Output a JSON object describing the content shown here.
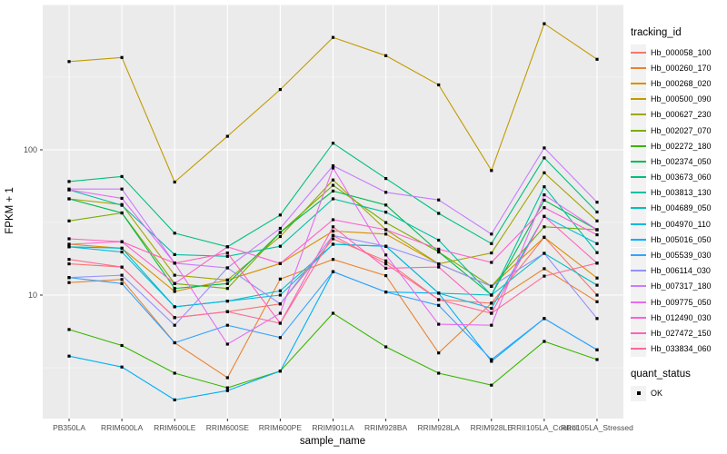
{
  "chart_data": {
    "type": "line",
    "xlabel": "sample_name",
    "ylabel": "FPKM + 1",
    "y_scale": "log10",
    "y_ticks": [
      10,
      100
    ],
    "y_domain_log10": [
      0.15,
      3.0
    ],
    "grid": {
      "major_log10": [
        1,
        2,
        3
      ],
      "minor_log10": [
        0.5,
        1.5,
        2.5
      ],
      "grid_on": true
    },
    "legend_position": "right",
    "x_categories": [
      "PB350LA",
      "RRIM600LA",
      "RRIM600LE",
      "RRIM600SE",
      "RRIM600PE",
      "RRIM901LA",
      "RRIM928BA",
      "RRIM928LA",
      "RRIM928LE",
      "RRII105LA_Control",
      "RRII105LA_Stressed"
    ],
    "color_legend_title": "tracking_id",
    "shape_legend_title": "quant_status",
    "shape_legend_items": [
      {
        "label": "OK",
        "shape": "square",
        "color": "#000000"
      }
    ],
    "series": [
      {
        "name": "Hb_000058_100",
        "color": "#F8766D",
        "values": [
          16.4,
          15.6,
          7.0,
          7.7,
          8.7,
          24.4,
          17.2,
          9.3,
          8.8,
          25.0,
          10.0
        ]
      },
      {
        "name": "Hb_000260_170",
        "color": "#EA8331",
        "values": [
          12.2,
          12.8,
          4.7,
          2.7,
          12.9,
          17.6,
          13.6,
          4.0,
          8.8,
          15.2,
          9.0
        ]
      },
      {
        "name": "Hb_000268_020",
        "color": "#D89000",
        "values": [
          22.4,
          21.0,
          10.6,
          12.7,
          16.5,
          27.6,
          26.3,
          16.4,
          11.5,
          25.0,
          13.1
        ]
      },
      {
        "name": "Hb_000500_090",
        "color": "#C09B00",
        "values": [
          405,
          432,
          60,
          124,
          260,
          594,
          445,
          280,
          72,
          738,
          420
        ]
      },
      {
        "name": "Hb_000627_230",
        "color": "#A3A500",
        "values": [
          46.0,
          42.0,
          13.7,
          12.7,
          25.3,
          62.0,
          28.2,
          16.4,
          19.5,
          69.5,
          32.4
        ]
      },
      {
        "name": "Hb_002027_070",
        "color": "#7CAE00",
        "values": [
          32.4,
          36.8,
          12.0,
          11.1,
          27.0,
          57.0,
          31.6,
          19.8,
          11.5,
          29.5,
          28.2
        ]
      },
      {
        "name": "Hb_002272_180",
        "color": "#39B600",
        "values": [
          5.8,
          4.5,
          2.9,
          2.3,
          3.0,
          7.5,
          4.4,
          2.9,
          2.4,
          4.8,
          3.6
        ]
      },
      {
        "name": "Hb_002374_050",
        "color": "#00BB4E",
        "values": [
          46.0,
          36.8,
          11.1,
          12.0,
          27.0,
          52.0,
          41.7,
          19.8,
          10.0,
          45.0,
          28.2
        ]
      },
      {
        "name": "Hb_003673_060",
        "color": "#00BF7D",
        "values": [
          60.5,
          65.5,
          26.7,
          21.5,
          35.6,
          111,
          63.5,
          36.5,
          22.6,
          88.0,
          37.3
        ]
      },
      {
        "name": "Hb_003813_130",
        "color": "#00C1A3",
        "values": [
          53.0,
          41.5,
          19.0,
          18.5,
          21.7,
          46.0,
          37.2,
          23.9,
          10.0,
          55.7,
          19.6
        ]
      },
      {
        "name": "Hb_004689_050",
        "color": "#00BFC4",
        "values": [
          21.5,
          21.0,
          8.3,
          9.1,
          10.7,
          22.4,
          21.7,
          10.3,
          10.0,
          19.4,
          11.7
        ]
      },
      {
        "name": "Hb_004970_110",
        "color": "#00BAE0",
        "values": [
          21.5,
          19.8,
          8.3,
          9.1,
          10.0,
          22.4,
          21.7,
          10.3,
          8.1,
          34.8,
          22.6
        ]
      },
      {
        "name": "Hb_005016_050",
        "color": "#00B0F6",
        "values": [
          3.8,
          3.2,
          1.9,
          2.2,
          3.0,
          14.5,
          10.5,
          10.3,
          3.5,
          6.9,
          4.2
        ]
      },
      {
        "name": "Hb_005539_030",
        "color": "#35A2FF",
        "values": [
          13.2,
          12.0,
          4.7,
          6.2,
          5.1,
          14.5,
          10.5,
          8.5,
          3.6,
          6.9,
          4.2
        ]
      },
      {
        "name": "Hb_006114_030",
        "color": "#9590FF",
        "values": [
          13.2,
          13.7,
          6.2,
          15.4,
          8.7,
          25.7,
          21.7,
          16.4,
          11.5,
          19.4,
          6.9
        ]
      },
      {
        "name": "Hb_007317_180",
        "color": "#C77CFF",
        "values": [
          53.7,
          53.7,
          16.6,
          15.4,
          28.8,
          77.6,
          51.0,
          45.2,
          26.3,
          103,
          43.6
        ]
      },
      {
        "name": "Hb_009775_050",
        "color": "#E76BF3",
        "values": [
          53.0,
          46.4,
          16.6,
          4.6,
          7.5,
          75.0,
          18.9,
          6.3,
          6.2,
          49.0,
          28.2
        ]
      },
      {
        "name": "Hb_012490_030",
        "color": "#FD61D1",
        "values": [
          22.4,
          23.3,
          12.0,
          21.5,
          16.5,
          33.0,
          28.2,
          20.7,
          16.8,
          40.0,
          26.0
        ]
      },
      {
        "name": "Hb_027472_150",
        "color": "#FF62BC",
        "values": [
          24.4,
          23.3,
          16.6,
          19.5,
          6.4,
          29.5,
          15.3,
          15.6,
          7.5,
          34.8,
          16.6
        ]
      },
      {
        "name": "Hb_033834_060",
        "color": "#FF6A98",
        "values": [
          17.6,
          15.6,
          7.0,
          7.7,
          6.4,
          25.7,
          16.4,
          9.3,
          7.5,
          13.5,
          16.6
        ]
      }
    ]
  },
  "colors": {
    "panel_bg": "#EBEBEB",
    "grid": "#FFFFFF",
    "axis_text": "#4D4D4D",
    "tick_mark": "#333333",
    "point": "#000000",
    "legend_key_bg": "#F2F2F2"
  }
}
